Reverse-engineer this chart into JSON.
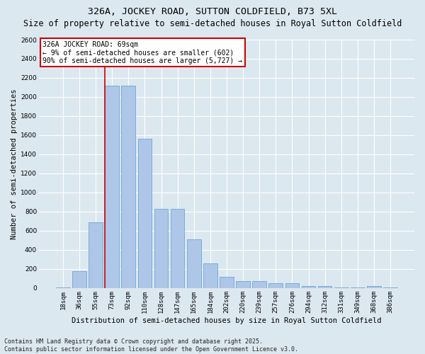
{
  "title": "326A, JOCKEY ROAD, SUTTON COLDFIELD, B73 5XL",
  "subtitle": "Size of property relative to semi-detached houses in Royal Sutton Coldfield",
  "xlabel": "Distribution of semi-detached houses by size in Royal Sutton Coldfield",
  "ylabel": "Number of semi-detached properties",
  "categories": [
    "18sqm",
    "36sqm",
    "55sqm",
    "73sqm",
    "92sqm",
    "110sqm",
    "128sqm",
    "147sqm",
    "165sqm",
    "184sqm",
    "202sqm",
    "220sqm",
    "239sqm",
    "257sqm",
    "276sqm",
    "294sqm",
    "312sqm",
    "331sqm",
    "349sqm",
    "368sqm",
    "386sqm"
  ],
  "values": [
    10,
    175,
    690,
    2120,
    2120,
    1560,
    830,
    830,
    510,
    255,
    120,
    75,
    75,
    50,
    50,
    25,
    25,
    10,
    10,
    25,
    10
  ],
  "bar_color": "#aec6e8",
  "bar_edge_color": "#5b9bd5",
  "vline_color": "#cc0000",
  "vline_x_index": 3,
  "annotation_text": "326A JOCKEY ROAD: 69sqm\n← 9% of semi-detached houses are smaller (602)\n90% of semi-detached houses are larger (5,727) →",
  "annotation_box_color": "#ffffff",
  "annotation_border_color": "#cc0000",
  "ylim": [
    0,
    2600
  ],
  "yticks": [
    0,
    200,
    400,
    600,
    800,
    1000,
    1200,
    1400,
    1600,
    1800,
    2000,
    2200,
    2400,
    2600
  ],
  "footnote": "Contains HM Land Registry data © Crown copyright and database right 2025.\nContains public sector information licensed under the Open Government Licence v3.0.",
  "bg_color": "#dce8f0",
  "plot_bg_color": "#dce8f0",
  "grid_color": "#ffffff",
  "title_fontsize": 9.5,
  "subtitle_fontsize": 8.5,
  "axis_label_fontsize": 7.5,
  "tick_fontsize": 6.5,
  "annotation_fontsize": 7,
  "footnote_fontsize": 6
}
